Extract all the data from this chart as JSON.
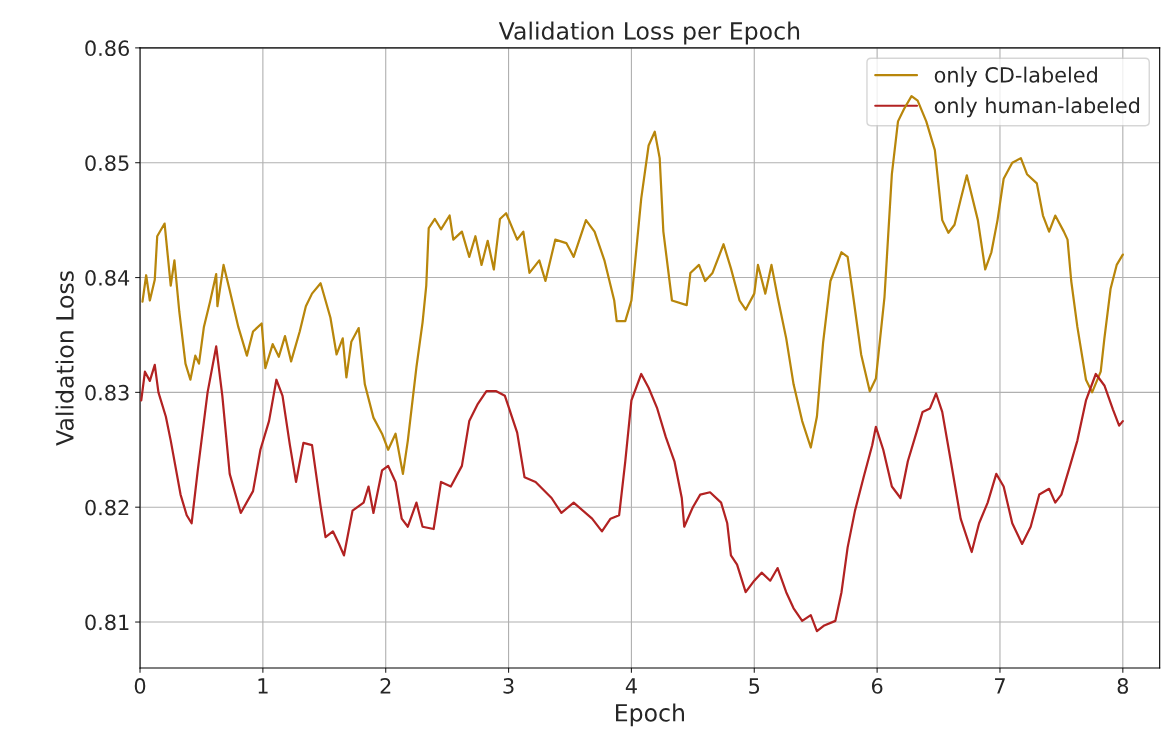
{
  "chart_data": {
    "type": "line",
    "title": "Validation Loss per Epoch",
    "xlabel": "Epoch",
    "ylabel": "Validation Loss",
    "xlim": [
      0,
      8.3
    ],
    "xticks": [
      0,
      1,
      2,
      3,
      4,
      5,
      6,
      7,
      8
    ],
    "ylim": [
      0.806,
      0.86
    ],
    "yticks": [
      0.81,
      0.82,
      0.83,
      0.84,
      0.85,
      0.86
    ],
    "grid": true,
    "legend": "top right",
    "series": [
      {
        "name": "only CD-labeled",
        "color": "#b8860b",
        "x": [
          0.02,
          0.05,
          0.08,
          0.12,
          0.14,
          0.2,
          0.25,
          0.28,
          0.32,
          0.37,
          0.41,
          0.45,
          0.48,
          0.52,
          0.57,
          0.62,
          0.63,
          0.68,
          0.73,
          0.8,
          0.87,
          0.92,
          0.99,
          1.02,
          1.08,
          1.13,
          1.18,
          1.23,
          1.3,
          1.35,
          1.4,
          1.47,
          1.55,
          1.6,
          1.65,
          1.68,
          1.72,
          1.78,
          1.83,
          1.9,
          1.97,
          2.02,
          2.08,
          2.14,
          2.18,
          2.25,
          2.3,
          2.33,
          2.35,
          2.4,
          2.45,
          2.52,
          2.55,
          2.62,
          2.68,
          2.73,
          2.78,
          2.83,
          2.88,
          2.93,
          2.98,
          3.07,
          3.12,
          3.17,
          3.25,
          3.3,
          3.38,
          3.47,
          3.53,
          3.63,
          3.7,
          3.78,
          3.86,
          3.88,
          3.95,
          4.0,
          4.08,
          4.14,
          4.19,
          4.23,
          4.26,
          4.33,
          4.45,
          4.48,
          4.55,
          4.6,
          4.66,
          4.75,
          4.81,
          4.88,
          4.93,
          5.0,
          5.03,
          5.09,
          5.14,
          5.19,
          5.26,
          5.32,
          5.39,
          5.46,
          5.51,
          5.56,
          5.62,
          5.71,
          5.76,
          5.81,
          5.87,
          5.94,
          5.99,
          6.06,
          6.12,
          6.17,
          6.22,
          6.28,
          6.33,
          6.4,
          6.47,
          6.53,
          6.58,
          6.63,
          6.68,
          6.73,
          6.82,
          6.88,
          6.93,
          6.98,
          7.03,
          7.1,
          7.17,
          7.22,
          7.3,
          7.35,
          7.4,
          7.45,
          7.52,
          7.55,
          7.58,
          7.63,
          7.7,
          7.75,
          7.82,
          7.85,
          7.9,
          7.95,
          8.0
        ],
        "values": [
          0.8379,
          0.8402,
          0.838,
          0.8398,
          0.8436,
          0.8447,
          0.8393,
          0.8415,
          0.837,
          0.8325,
          0.8311,
          0.8332,
          0.8325,
          0.8357,
          0.8379,
          0.8403,
          0.8375,
          0.8411,
          0.8389,
          0.8357,
          0.8332,
          0.8353,
          0.836,
          0.8321,
          0.8342,
          0.8331,
          0.8349,
          0.8327,
          0.8353,
          0.8375,
          0.8386,
          0.8395,
          0.8365,
          0.8333,
          0.8347,
          0.8313,
          0.8344,
          0.8356,
          0.8307,
          0.8278,
          0.8264,
          0.825,
          0.8264,
          0.8229,
          0.8258,
          0.8322,
          0.8361,
          0.8393,
          0.8443,
          0.8451,
          0.8442,
          0.8454,
          0.8433,
          0.844,
          0.8418,
          0.8436,
          0.8411,
          0.8432,
          0.8407,
          0.8451,
          0.8456,
          0.8433,
          0.844,
          0.8404,
          0.8415,
          0.8397,
          0.8433,
          0.843,
          0.8418,
          0.845,
          0.844,
          0.8415,
          0.838,
          0.8362,
          0.8362,
          0.838,
          0.8469,
          0.8515,
          0.8527,
          0.8504,
          0.844,
          0.838,
          0.8376,
          0.8404,
          0.8411,
          0.8397,
          0.8404,
          0.8429,
          0.8408,
          0.838,
          0.8372,
          0.8386,
          0.8411,
          0.8386,
          0.8411,
          0.8383,
          0.8347,
          0.8307,
          0.8275,
          0.8252,
          0.8279,
          0.8343,
          0.8397,
          0.8422,
          0.8418,
          0.838,
          0.8333,
          0.8301,
          0.8312,
          0.8383,
          0.849,
          0.8536,
          0.8547,
          0.8558,
          0.8554,
          0.8536,
          0.8511,
          0.845,
          0.8439,
          0.8446,
          0.8468,
          0.8489,
          0.845,
          0.8407,
          0.8422,
          0.845,
          0.8486,
          0.85,
          0.8504,
          0.849,
          0.8482,
          0.8454,
          0.844,
          0.8454,
          0.844,
          0.8433,
          0.8397,
          0.8357,
          0.8311,
          0.83,
          0.8318,
          0.8347,
          0.839,
          0.8411,
          0.842
        ]
      },
      {
        "name": "only human-labeled",
        "color": "#b22222",
        "x": [
          0.01,
          0.04,
          0.08,
          0.12,
          0.15,
          0.21,
          0.25,
          0.33,
          0.38,
          0.42,
          0.47,
          0.55,
          0.62,
          0.67,
          0.73,
          0.82,
          0.92,
          0.98,
          1.05,
          1.11,
          1.16,
          1.22,
          1.27,
          1.33,
          1.4,
          1.47,
          1.51,
          1.57,
          1.62,
          1.66,
          1.73,
          1.82,
          1.86,
          1.9,
          1.97,
          2.02,
          2.08,
          2.13,
          2.18,
          2.25,
          2.3,
          2.39,
          2.45,
          2.53,
          2.62,
          2.68,
          2.75,
          2.82,
          2.9,
          2.97,
          3.07,
          3.13,
          3.22,
          3.35,
          3.43,
          3.53,
          3.68,
          3.76,
          3.83,
          3.9,
          3.95,
          4.0,
          4.08,
          4.14,
          4.21,
          4.28,
          4.35,
          4.41,
          4.43,
          4.5,
          4.56,
          4.64,
          4.73,
          4.78,
          4.81,
          4.86,
          4.93,
          5.0,
          5.06,
          5.13,
          5.19,
          5.26,
          5.32,
          5.39,
          5.46,
          5.51,
          5.57,
          5.66,
          5.71,
          5.76,
          5.82,
          5.89,
          5.96,
          5.99,
          6.05,
          6.12,
          6.19,
          6.25,
          6.32,
          6.37,
          6.43,
          6.48,
          6.53,
          6.6,
          6.68,
          6.77,
          6.83,
          6.9,
          6.97,
          7.03,
          7.1,
          7.18,
          7.25,
          7.32,
          7.4,
          7.45,
          7.5,
          7.57,
          7.63,
          7.7,
          7.78,
          7.85,
          7.92,
          7.97,
          8.0
        ],
        "values": [
          0.8293,
          0.8318,
          0.831,
          0.8324,
          0.83,
          0.8279,
          0.8258,
          0.8211,
          0.8193,
          0.8186,
          0.8232,
          0.83,
          0.834,
          0.8297,
          0.8229,
          0.8195,
          0.8214,
          0.825,
          0.8275,
          0.8311,
          0.8297,
          0.8254,
          0.8222,
          0.8256,
          0.8254,
          0.8201,
          0.8174,
          0.8179,
          0.8168,
          0.8158,
          0.8197,
          0.8204,
          0.8218,
          0.8195,
          0.8232,
          0.8236,
          0.8222,
          0.819,
          0.8183,
          0.8204,
          0.8183,
          0.8181,
          0.8222,
          0.8218,
          0.8236,
          0.8275,
          0.829,
          0.8301,
          0.8301,
          0.8297,
          0.8265,
          0.8226,
          0.8222,
          0.8208,
          0.8195,
          0.8204,
          0.819,
          0.8179,
          0.819,
          0.8193,
          0.824,
          0.8293,
          0.8316,
          0.8304,
          0.8286,
          0.8261,
          0.824,
          0.8208,
          0.8183,
          0.82,
          0.8211,
          0.8213,
          0.8204,
          0.8186,
          0.8158,
          0.815,
          0.8126,
          0.8136,
          0.8143,
          0.8136,
          0.8147,
          0.8126,
          0.8112,
          0.8101,
          0.8106,
          0.8092,
          0.8097,
          0.8101,
          0.8126,
          0.8165,
          0.8197,
          0.8226,
          0.8254,
          0.827,
          0.825,
          0.8218,
          0.8208,
          0.824,
          0.8265,
          0.8283,
          0.8286,
          0.8299,
          0.8283,
          0.824,
          0.819,
          0.8161,
          0.8186,
          0.8204,
          0.8229,
          0.8218,
          0.8186,
          0.8168,
          0.8183,
          0.8211,
          0.8216,
          0.8204,
          0.8211,
          0.8236,
          0.8258,
          0.8293,
          0.8316,
          0.8306,
          0.8285,
          0.8271,
          0.8275
        ]
      }
    ]
  }
}
